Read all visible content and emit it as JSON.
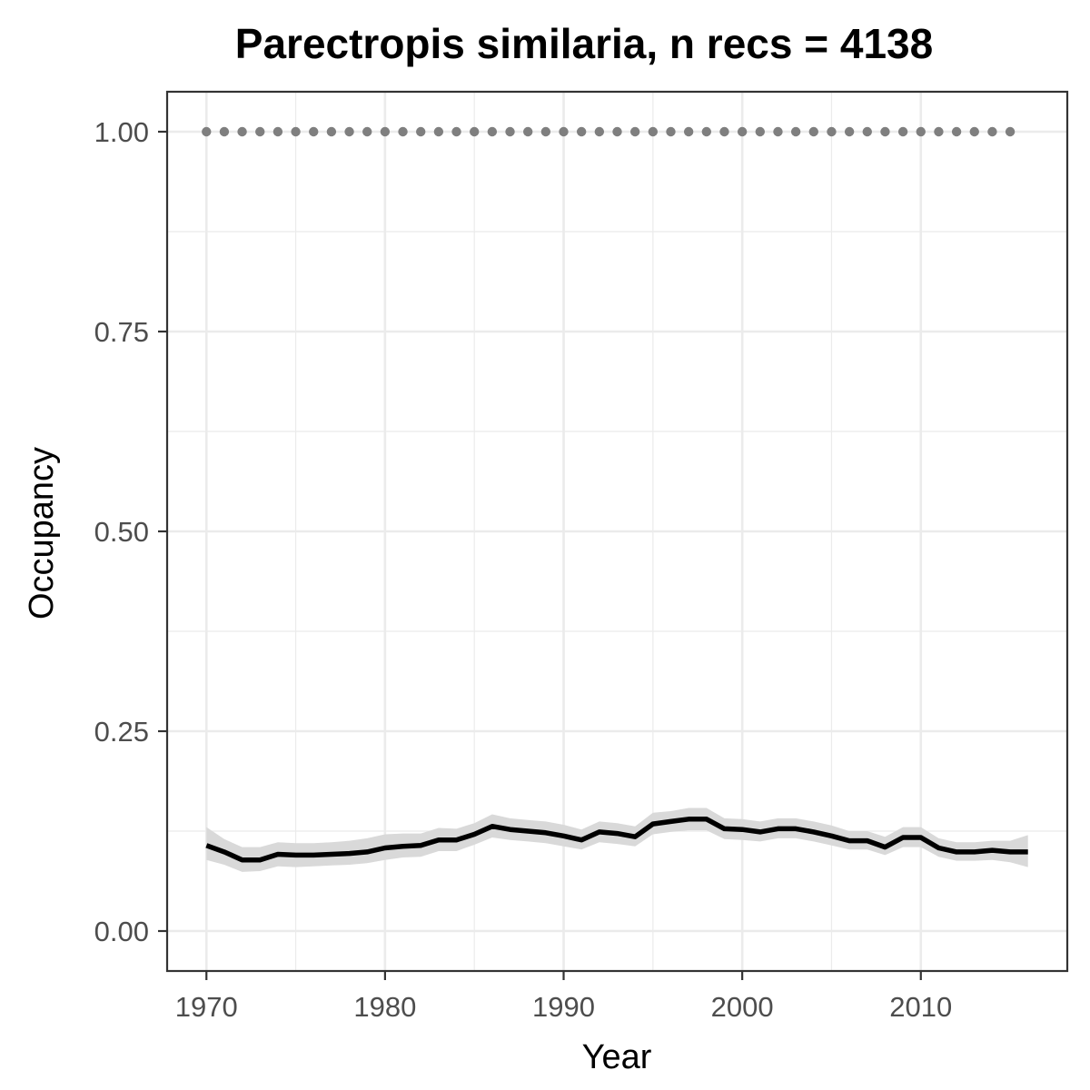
{
  "chart_data": {
    "type": "line",
    "title": "Parectropis similaria, n recs = 4138",
    "xlabel": "Year",
    "ylabel": "Occupancy",
    "xlim": [
      1967.8,
      2018.2
    ],
    "ylim": [
      -0.05,
      1.05
    ],
    "x_ticks": [
      1970,
      1980,
      1990,
      2000,
      2010
    ],
    "x_tick_labels": [
      "1970",
      "1980",
      "1990",
      "2000",
      "2010"
    ],
    "y_ticks": [
      0,
      0.25,
      0.5,
      0.75,
      1.0
    ],
    "y_tick_labels": [
      "0.00",
      "0.25",
      "0.50",
      "0.75",
      "1.00"
    ],
    "grid": true,
    "legend": "none",
    "colors": {
      "line": "#000000",
      "ribbon": "#d9d9d9",
      "points": "#7f7f7f",
      "grid": "#ebebeb",
      "panel_border": "#333333"
    },
    "x": [
      1970,
      1971,
      1972,
      1973,
      1974,
      1975,
      1976,
      1977,
      1978,
      1979,
      1980,
      1981,
      1982,
      1983,
      1984,
      1985,
      1986,
      1987,
      1988,
      1989,
      1990,
      1991,
      1992,
      1993,
      1994,
      1995,
      1996,
      1997,
      1998,
      1999,
      2000,
      2001,
      2002,
      2003,
      2004,
      2005,
      2006,
      2007,
      2008,
      2009,
      2010,
      2011,
      2012,
      2013,
      2014,
      2015,
      2016
    ],
    "series": [
      {
        "values": [
          0.107,
          0.099,
          0.089,
          0.089,
          0.096,
          0.095,
          0.095,
          0.096,
          0.097,
          0.099,
          0.104,
          0.106,
          0.107,
          0.114,
          0.114,
          0.121,
          0.131,
          0.127,
          0.125,
          0.123,
          0.119,
          0.114,
          0.124,
          0.122,
          0.118,
          0.134,
          0.137,
          0.14,
          0.14,
          0.128,
          0.127,
          0.124,
          0.128,
          0.128,
          0.124,
          0.119,
          0.113,
          0.113,
          0.105,
          0.117,
          0.117,
          0.104,
          0.099,
          0.099,
          0.101,
          0.099,
          0.099
        ],
        "lower": [
          0.089,
          0.083,
          0.074,
          0.075,
          0.081,
          0.08,
          0.081,
          0.082,
          0.083,
          0.085,
          0.089,
          0.092,
          0.093,
          0.1,
          0.1,
          0.108,
          0.117,
          0.114,
          0.112,
          0.11,
          0.106,
          0.102,
          0.111,
          0.109,
          0.106,
          0.121,
          0.124,
          0.126,
          0.126,
          0.115,
          0.114,
          0.112,
          0.116,
          0.116,
          0.112,
          0.107,
          0.102,
          0.102,
          0.095,
          0.105,
          0.105,
          0.093,
          0.088,
          0.088,
          0.089,
          0.086,
          0.08
        ],
        "upper": [
          0.13,
          0.115,
          0.105,
          0.105,
          0.111,
          0.11,
          0.11,
          0.111,
          0.113,
          0.116,
          0.121,
          0.122,
          0.122,
          0.129,
          0.128,
          0.135,
          0.146,
          0.141,
          0.139,
          0.137,
          0.133,
          0.127,
          0.137,
          0.135,
          0.131,
          0.148,
          0.15,
          0.154,
          0.154,
          0.141,
          0.14,
          0.137,
          0.141,
          0.141,
          0.137,
          0.132,
          0.125,
          0.125,
          0.118,
          0.13,
          0.13,
          0.116,
          0.111,
          0.111,
          0.113,
          0.113,
          0.12
        ]
      }
    ],
    "points": {
      "x": [
        1970,
        1971,
        1972,
        1973,
        1974,
        1975,
        1976,
        1977,
        1978,
        1979,
        1980,
        1981,
        1982,
        1983,
        1984,
        1985,
        1986,
        1987,
        1988,
        1989,
        1990,
        1991,
        1992,
        1993,
        1994,
        1995,
        1996,
        1997,
        1998,
        1999,
        2000,
        2001,
        2002,
        2003,
        2004,
        2005,
        2006,
        2007,
        2008,
        2009,
        2010,
        2011,
        2012,
        2013,
        2014,
        2015
      ],
      "y": [
        1,
        1,
        1,
        1,
        1,
        1,
        1,
        1,
        1,
        1,
        1,
        1,
        1,
        1,
        1,
        1,
        1,
        1,
        1,
        1,
        1,
        1,
        1,
        1,
        1,
        1,
        1,
        1,
        1,
        1,
        1,
        1,
        1,
        1,
        1,
        1,
        1,
        1,
        1,
        1,
        1,
        1,
        1,
        1,
        1,
        1
      ]
    }
  }
}
